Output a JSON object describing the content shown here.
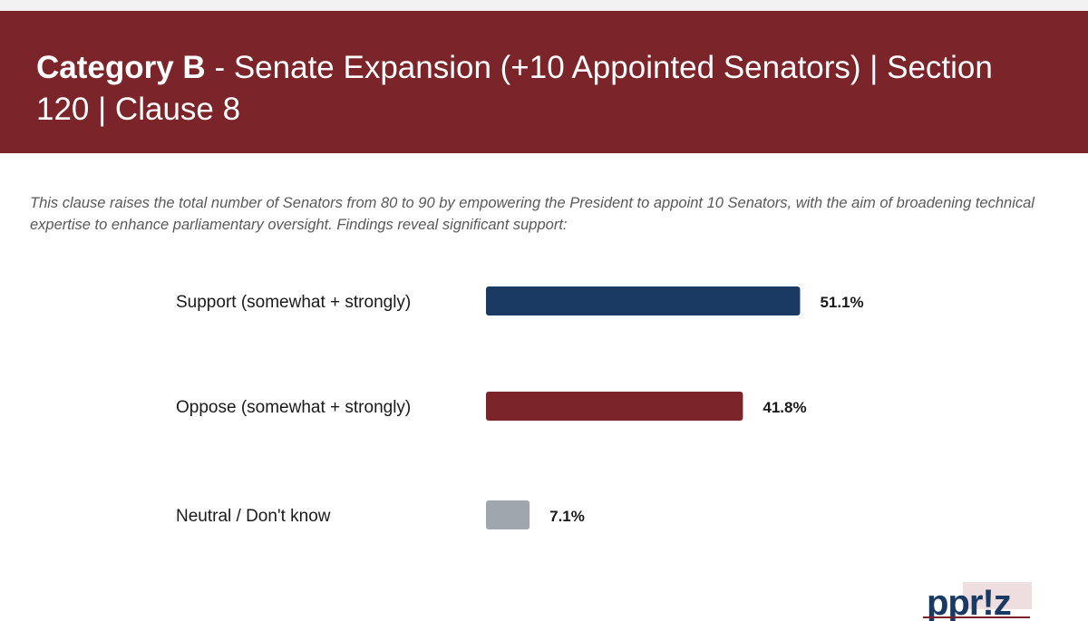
{
  "header": {
    "title_bold": "Category B",
    "title_rest": " - Senate Expansion (+10 Appointed Senators) | Section 120 | Clause 8"
  },
  "description": "This clause raises the total number of Senators from 80 to 90 by empowering the President to appoint 10 Senators, with the aim of broadening technical expertise to enhance parliamentary oversight. Findings reveal significant support:",
  "logo": {
    "text": "ppr!z"
  },
  "colors": {
    "banner": "#7b2429",
    "support": "#1b3a63",
    "oppose": "#7b2429",
    "neutral": "#a0a6ae"
  },
  "chart_data": {
    "type": "bar",
    "orientation": "horizontal",
    "categories": [
      "Support (somewhat + strongly)",
      "Oppose (somewhat + strongly)",
      "Neutral / Don't know"
    ],
    "values": [
      51.1,
      41.8,
      7.1
    ],
    "value_labels": [
      "51.1%",
      "41.8%",
      "7.1%"
    ],
    "colors": [
      "#1b3a63",
      "#7b2429",
      "#a0a6ae"
    ],
    "xlim": [
      0,
      100
    ],
    "grid": false,
    "legend": "none"
  }
}
